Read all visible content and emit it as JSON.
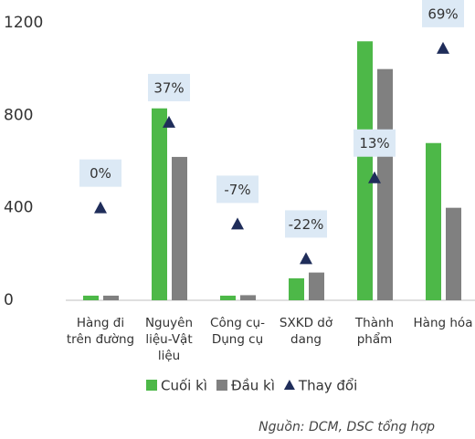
{
  "chart_data": {
    "type": "bar",
    "categories": [
      "Hàng đi trên đường",
      "Nguyên liệu-Vật liệu",
      "Công cụ-Dụng cụ",
      "SXKD dở dang",
      "Thành phẩm",
      "Hàng hóa"
    ],
    "series": [
      {
        "name": "Cuối kì",
        "type": "bar",
        "color": "#4db848",
        "values": [
          20,
          830,
          20,
          95,
          1120,
          680
        ]
      },
      {
        "name": "Đầu kì",
        "type": "bar",
        "color": "#808080",
        "values": [
          20,
          620,
          22,
          120,
          1000,
          400
        ]
      },
      {
        "name": "Thay đổi",
        "type": "scatter",
        "axis": "y2",
        "color": "#1f2d5a",
        "values": [
          0,
          37,
          -7,
          -22,
          13,
          69
        ],
        "value_labels": [
          "0%",
          "37%",
          "-7%",
          "-22%",
          "13%",
          "69%"
        ]
      }
    ],
    "ylim": [
      0,
      1200
    ],
    "yticks": [
      0,
      400,
      800,
      1200
    ],
    "y2lim": [
      -40,
      80
    ],
    "source": "Nguồn: DCM, DSC tổng hợp"
  }
}
